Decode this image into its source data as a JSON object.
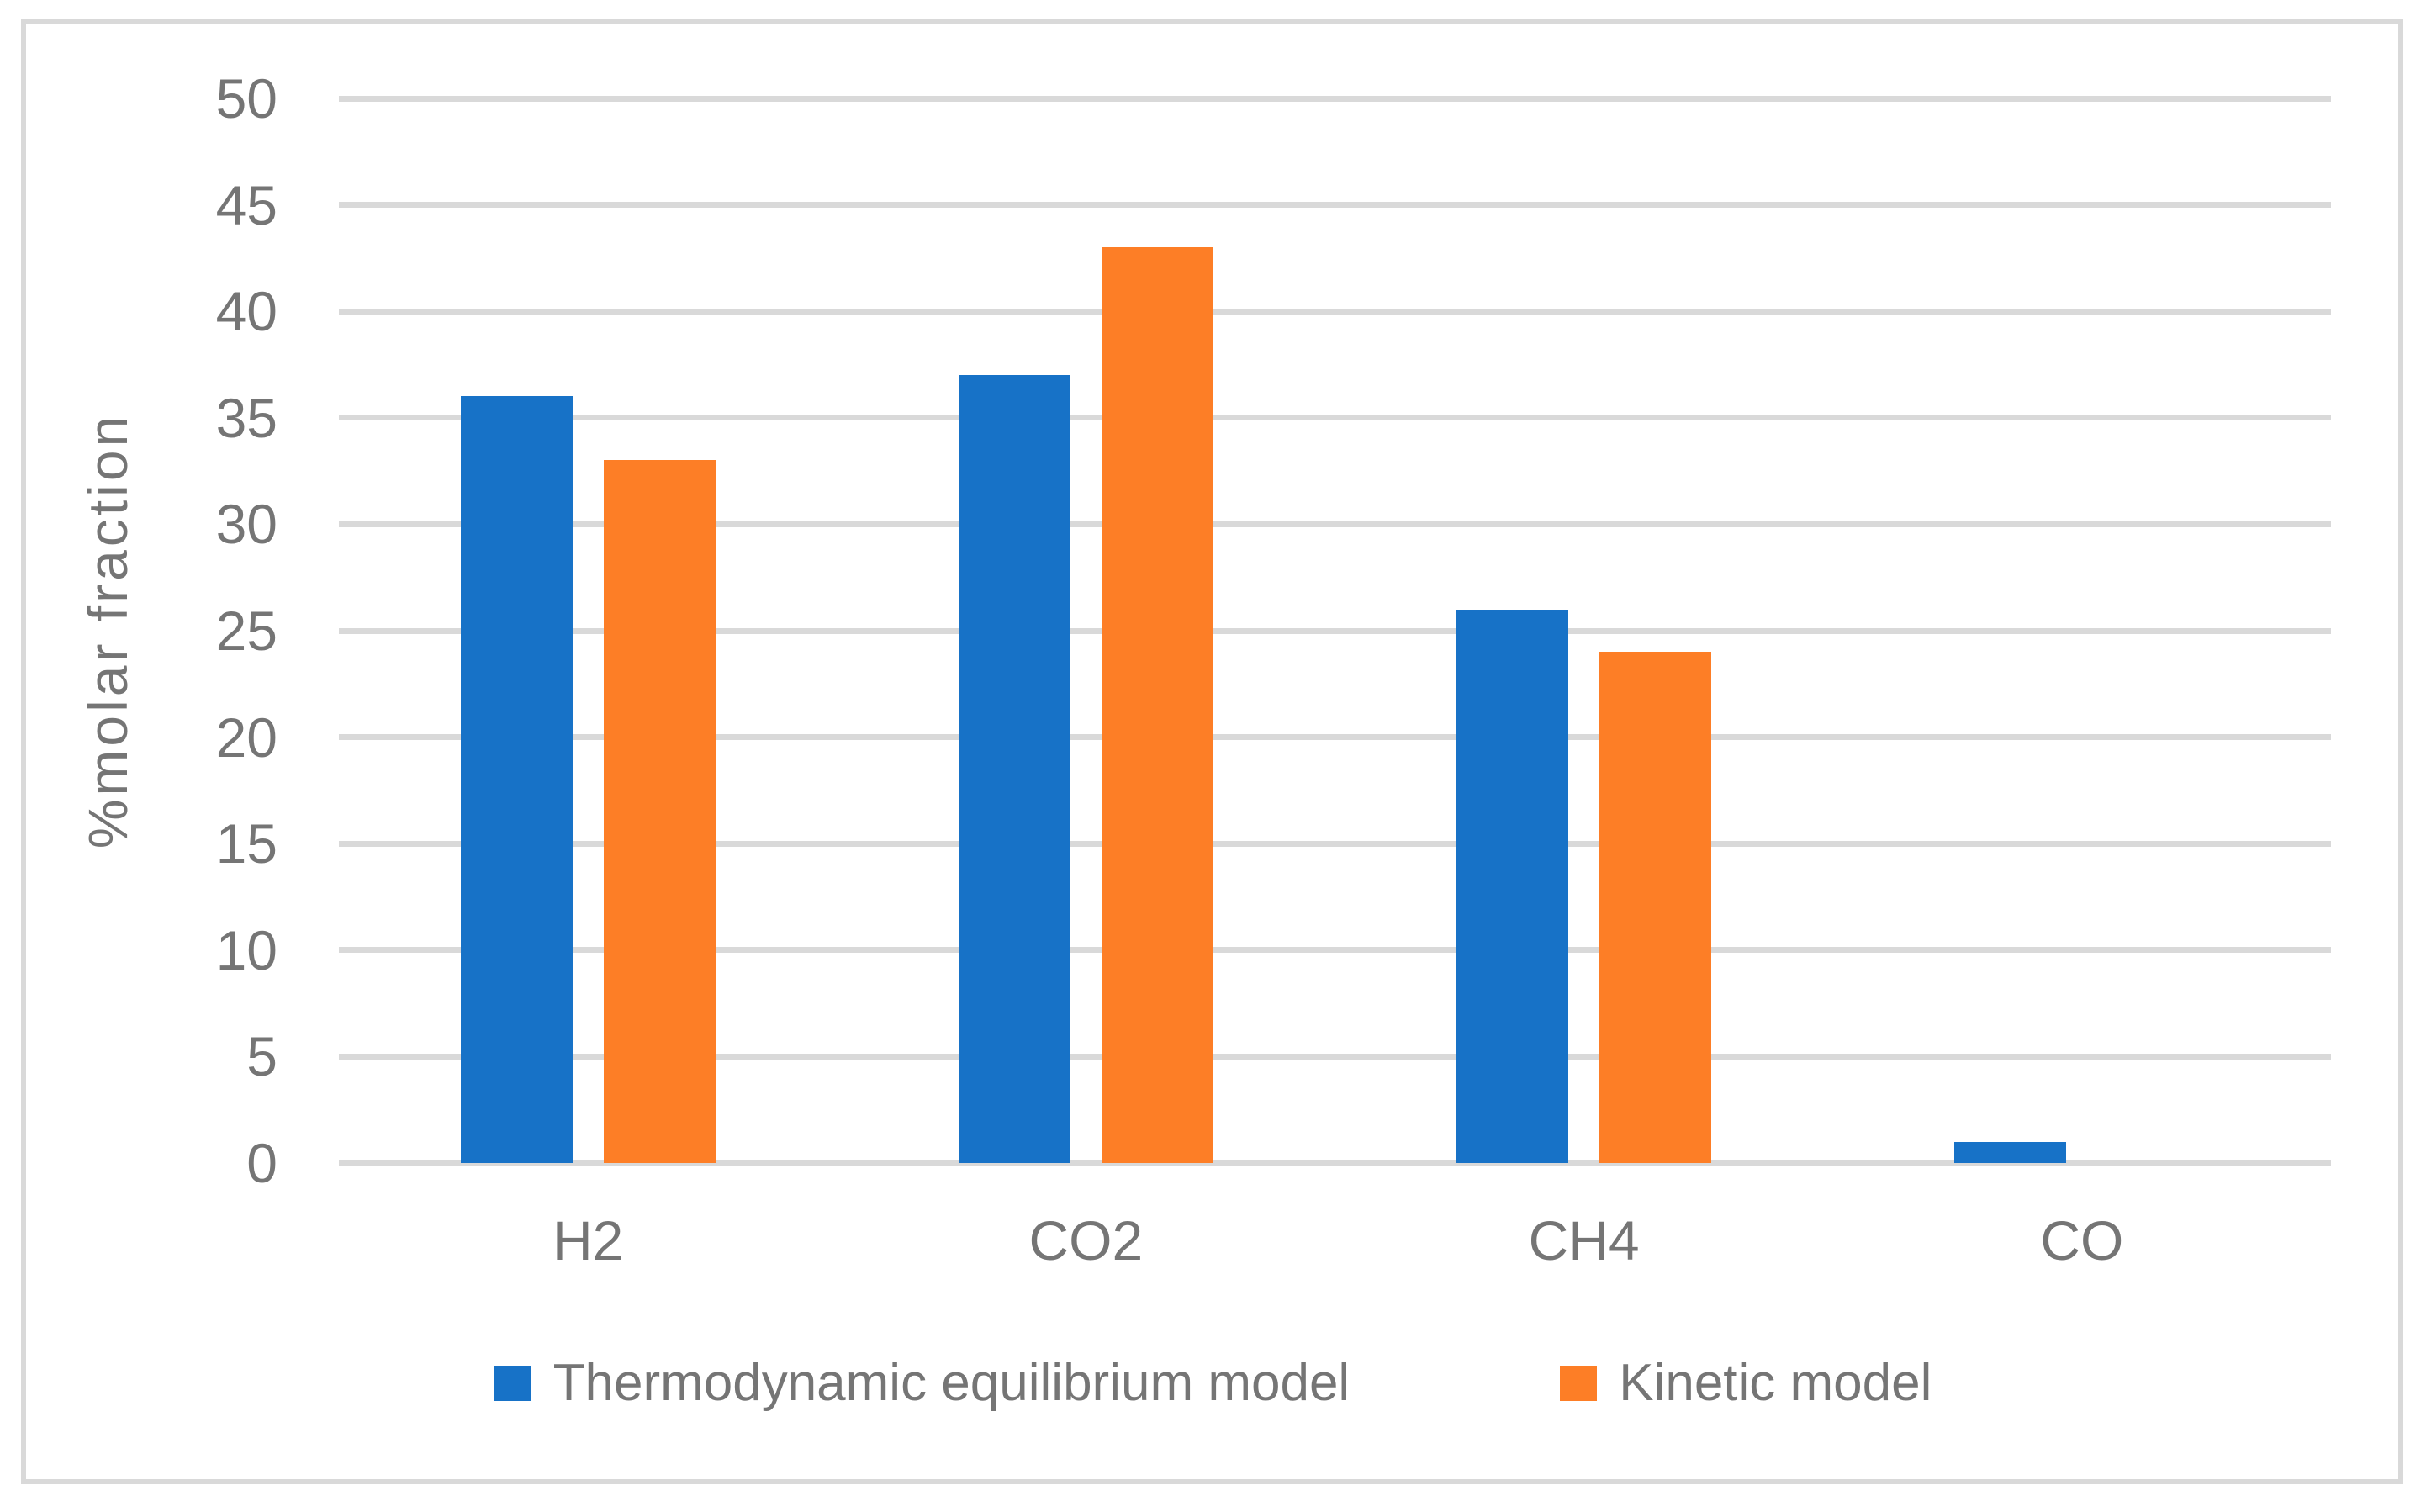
{
  "chart_data": {
    "type": "bar",
    "title": "",
    "categories": [
      "H2",
      "CO2",
      "CH4",
      "CO"
    ],
    "series": [
      {
        "name": "Thermodynamic equilibrium model",
        "color": "#1772c7",
        "values": [
          36,
          37,
          26,
          1
        ]
      },
      {
        "name": "Kinetic model",
        "color": "#fd7e26",
        "values": [
          33,
          43,
          24,
          0
        ]
      }
    ],
    "xlabel": "",
    "ylabel": "%molar fraction",
    "ylim": [
      0,
      50
    ],
    "yticks": [
      0,
      5,
      10,
      15,
      20,
      25,
      30,
      35,
      40,
      45,
      50
    ],
    "grid": "horizontal",
    "legend_position": "bottom"
  },
  "style": {
    "grid_color": "#d9d9d9",
    "frame_color": "#d9d9d9",
    "text_color": "#757575",
    "background": "#ffffff"
  }
}
